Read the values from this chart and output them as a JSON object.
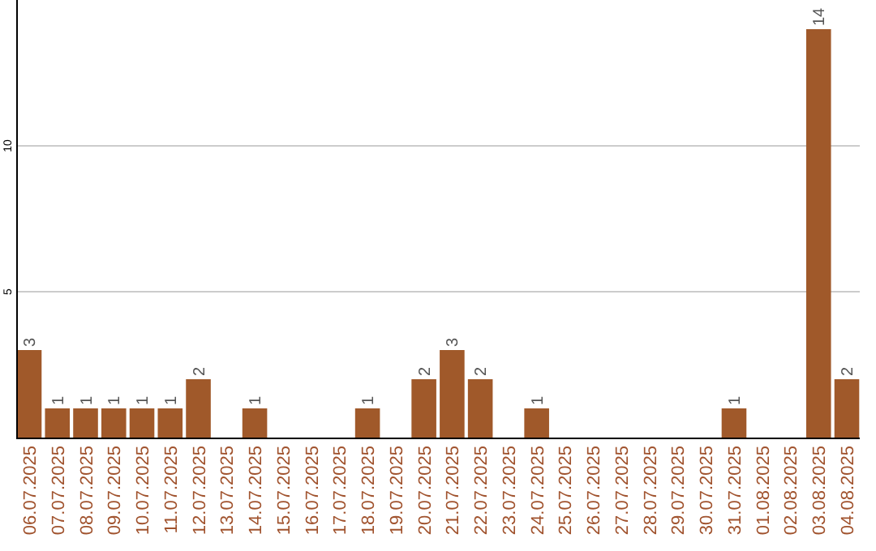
{
  "chart_data": {
    "type": "bar",
    "categories": [
      "06.07.2025",
      "07.07.2025",
      "08.07.2025",
      "09.07.2025",
      "10.07.2025",
      "11.07.2025",
      "12.07.2025",
      "13.07.2025",
      "14.07.2025",
      "15.07.2025",
      "16.07.2025",
      "17.07.2025",
      "18.07.2025",
      "19.07.2025",
      "20.07.2025",
      "21.07.2025",
      "22.07.2025",
      "23.07.2025",
      "24.07.2025",
      "25.07.2025",
      "26.07.2025",
      "27.07.2025",
      "28.07.2025",
      "29.07.2025",
      "30.07.2025",
      "31.07.2025",
      "01.08.2025",
      "02.08.2025",
      "03.08.2025",
      "04.08.2025"
    ],
    "values": [
      3,
      1,
      1,
      1,
      1,
      1,
      2,
      0,
      1,
      0,
      0,
      0,
      1,
      0,
      2,
      3,
      2,
      0,
      1,
      0,
      0,
      0,
      0,
      0,
      0,
      1,
      0,
      0,
      14,
      2
    ],
    "value_labels": [
      "3",
      "1",
      "1",
      "1",
      "1",
      "1",
      "2",
      null,
      "1",
      null,
      null,
      null,
      "1",
      null,
      "2",
      "3",
      "2",
      null,
      "1",
      null,
      null,
      null,
      null,
      null,
      null,
      "1",
      null,
      null,
      "14",
      "2"
    ],
    "color": "#a0592a",
    "ylim": [
      0,
      15
    ],
    "yticks": [
      5,
      10
    ],
    "grid": "y"
  }
}
